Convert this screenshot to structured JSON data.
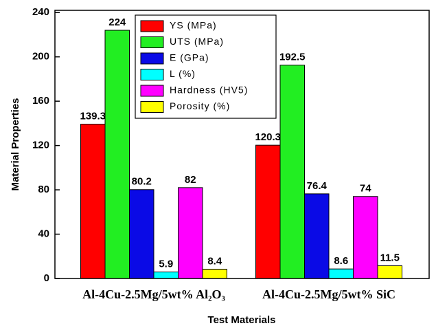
{
  "chart_data": {
    "type": "bar",
    "x_label": "Test Materials",
    "y_label": "Material Properties",
    "categories": [
      "Al-4Cu-2.5Mg/5wt% Al₂O₃",
      "Al-4Cu-2.5Mg/5wt% SiC"
    ],
    "series": [
      {
        "name": "YS (MPa)",
        "color": "#ff0000",
        "values": [
          139.3,
          120.3
        ]
      },
      {
        "name": "UTS (MPa)",
        "color": "#22ee22",
        "values": [
          224,
          192.5
        ]
      },
      {
        "name": "E (GPa)",
        "color": "#0a0ae6",
        "values": [
          80.2,
          76.4
        ]
      },
      {
        "name": "L (%)",
        "color": "#00ffff",
        "values": [
          5.9,
          8.6
        ]
      },
      {
        "name": "Hardness (HV5)",
        "color": "#ff00ff",
        "values": [
          82,
          74
        ]
      },
      {
        "name": "Porosity (%)",
        "color": "#ffff00",
        "values": [
          8.4,
          11.5
        ]
      }
    ],
    "ylim": [
      0,
      242
    ],
    "yticks": [
      0,
      40,
      80,
      120,
      160,
      200,
      240
    ],
    "legend": "upper center",
    "grid": false
  }
}
